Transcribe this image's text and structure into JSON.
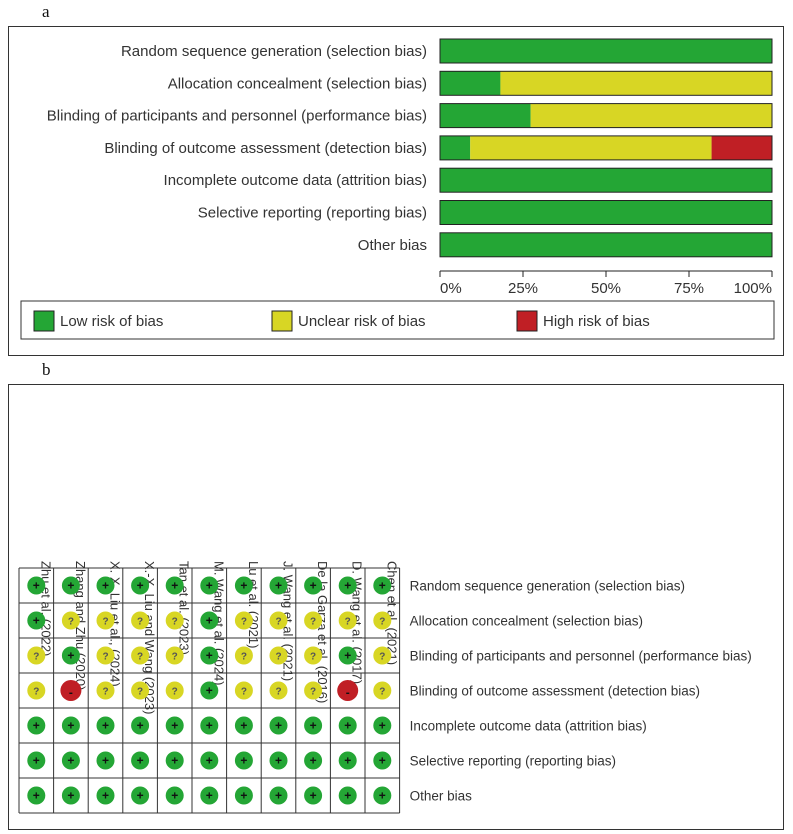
{
  "panel_labels": {
    "a": "a",
    "b": "b"
  },
  "colors": {
    "low": "#24a635",
    "unclear": "#d8d624",
    "high": "#c01f25",
    "border": "#333333"
  },
  "chart_data": [
    {
      "type": "bar",
      "orientation": "horizontal",
      "stacked": true,
      "title": "",
      "categories": [
        "Random sequence generation (selection bias)",
        "Allocation concealment (selection bias)",
        "Blinding of participants and personnel (performance bias)",
        "Blinding of outcome assessment (detection bias)",
        "Incomplete outcome data (attrition bias)",
        "Selective reporting (reporting bias)",
        "Other bias"
      ],
      "series": [
        {
          "name": "Low risk of bias",
          "key": "low",
          "values": [
            100,
            18.2,
            27.3,
            9.1,
            100,
            100,
            100
          ]
        },
        {
          "name": "Unclear risk of bias",
          "key": "unclear",
          "values": [
            0,
            81.8,
            72.7,
            72.7,
            0,
            0,
            0
          ]
        },
        {
          "name": "High risk of bias",
          "key": "high",
          "values": [
            0,
            0,
            0,
            18.2,
            0,
            0,
            0
          ]
        }
      ],
      "xlim": [
        0,
        100
      ],
      "xticks": [
        "0%",
        "25%",
        "50%",
        "75%",
        "100%"
      ],
      "legend": [
        "Low risk of bias",
        "Unclear risk of bias",
        "High risk of bias"
      ],
      "legend_position": "bottom"
    },
    {
      "type": "heatmap",
      "title": "",
      "studies": [
        "Zhu et al. (2022)",
        "Zhang and Zhu (2020)",
        "X. X. Liu et al., (2024)",
        "X.-X. Liu and Wang (2023)",
        "Tan et al. (2023)",
        "M. Wang et al. (2024)",
        "Lu et al. (2021)",
        "J. Wang et al. (2021)",
        "De la Garza et al. (2016)",
        "D. Wang et al. (2017)",
        "Chen et al. (2021)"
      ],
      "domains": [
        "Random sequence generation (selection bias)",
        "Allocation concealment (selection bias)",
        "Blinding of participants and personnel (performance bias)",
        "Blinding of outcome assessment (detection bias)",
        "Incomplete outcome data (attrition bias)",
        "Selective reporting (reporting bias)",
        "Other bias"
      ],
      "symbols": {
        "low": "+",
        "unclear": "?",
        "high": "-"
      },
      "judgements": [
        [
          "low",
          "low",
          "low",
          "low",
          "low",
          "low",
          "low",
          "low",
          "low",
          "low",
          "low"
        ],
        [
          "low",
          "unclear",
          "unclear",
          "unclear",
          "unclear",
          "low",
          "unclear",
          "unclear",
          "unclear",
          "unclear",
          "unclear"
        ],
        [
          "unclear",
          "low",
          "unclear",
          "unclear",
          "unclear",
          "low",
          "unclear",
          "unclear",
          "unclear",
          "low",
          "unclear"
        ],
        [
          "unclear",
          "high",
          "unclear",
          "unclear",
          "unclear",
          "low",
          "unclear",
          "unclear",
          "unclear",
          "high",
          "unclear"
        ],
        [
          "low",
          "low",
          "low",
          "low",
          "low",
          "low",
          "low",
          "low",
          "low",
          "low",
          "low"
        ],
        [
          "low",
          "low",
          "low",
          "low",
          "low",
          "low",
          "low",
          "low",
          "low",
          "low",
          "low"
        ],
        [
          "low",
          "low",
          "low",
          "low",
          "low",
          "low",
          "low",
          "low",
          "low",
          "low",
          "low"
        ]
      ]
    }
  ]
}
